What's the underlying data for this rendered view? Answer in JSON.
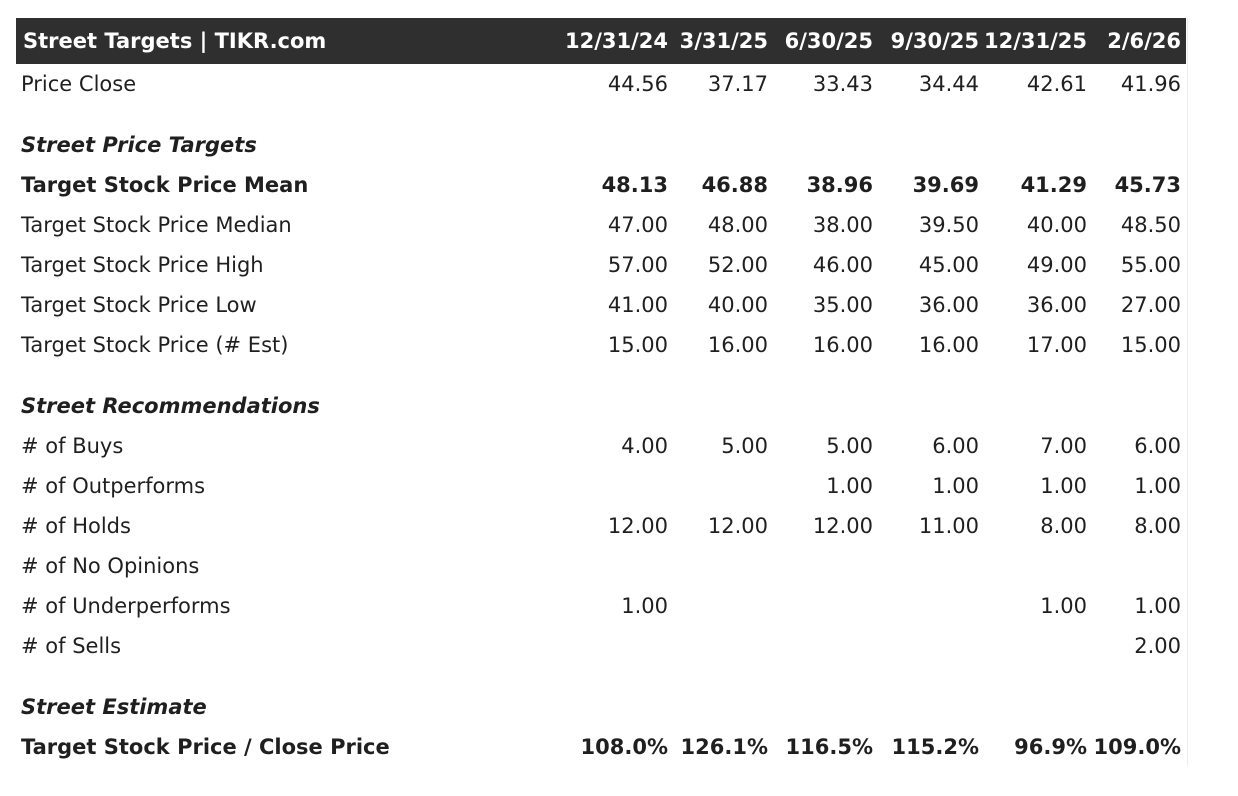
{
  "table": {
    "title": "Street Targets | TIKR.com",
    "columns": [
      "12/31/24",
      "3/31/25",
      "6/30/25",
      "9/30/25",
      "12/31/25",
      "2/6/26"
    ],
    "price_close": {
      "label": "Price Close",
      "values": [
        "44.56",
        "37.17",
        "33.43",
        "34.44",
        "42.61",
        "41.96"
      ]
    },
    "targets_section": "Street Price Targets",
    "targets": [
      {
        "label": "Target Stock Price Mean",
        "values": [
          "48.13",
          "46.88",
          "38.96",
          "39.69",
          "41.29",
          "45.73"
        ]
      },
      {
        "label": "Target Stock Price Median",
        "values": [
          "47.00",
          "48.00",
          "38.00",
          "39.50",
          "40.00",
          "48.50"
        ]
      },
      {
        "label": "Target Stock Price High",
        "values": [
          "57.00",
          "52.00",
          "46.00",
          "45.00",
          "49.00",
          "55.00"
        ]
      },
      {
        "label": "Target Stock Price Low",
        "values": [
          "41.00",
          "40.00",
          "35.00",
          "36.00",
          "36.00",
          "27.00"
        ]
      },
      {
        "label": "Target Stock Price (# Est)",
        "values": [
          "15.00",
          "16.00",
          "16.00",
          "16.00",
          "17.00",
          "15.00"
        ]
      }
    ],
    "recs_section": "Street Recommendations",
    "recs": [
      {
        "label": "# of Buys",
        "values": [
          "4.00",
          "5.00",
          "5.00",
          "6.00",
          "7.00",
          "6.00"
        ]
      },
      {
        "label": "# of Outperforms",
        "values": [
          "",
          "",
          "1.00",
          "1.00",
          "1.00",
          "1.00"
        ]
      },
      {
        "label": "# of Holds",
        "values": [
          "12.00",
          "12.00",
          "12.00",
          "11.00",
          "8.00",
          "8.00"
        ]
      },
      {
        "label": "# of No Opinions",
        "values": [
          "",
          "",
          "",
          "",
          "",
          ""
        ]
      },
      {
        "label": "# of Underperforms",
        "values": [
          "1.00",
          "",
          "",
          "",
          "1.00",
          "1.00"
        ]
      },
      {
        "label": "# of Sells",
        "values": [
          "",
          "",
          "",
          "",
          "",
          "2.00"
        ]
      }
    ],
    "estimate_section": "Street Estimate",
    "estimate": {
      "label": "Target Stock Price / Close Price",
      "values": [
        "108.0%",
        "126.1%",
        "116.5%",
        "115.2%",
        "96.9%",
        "109.0%"
      ]
    }
  }
}
